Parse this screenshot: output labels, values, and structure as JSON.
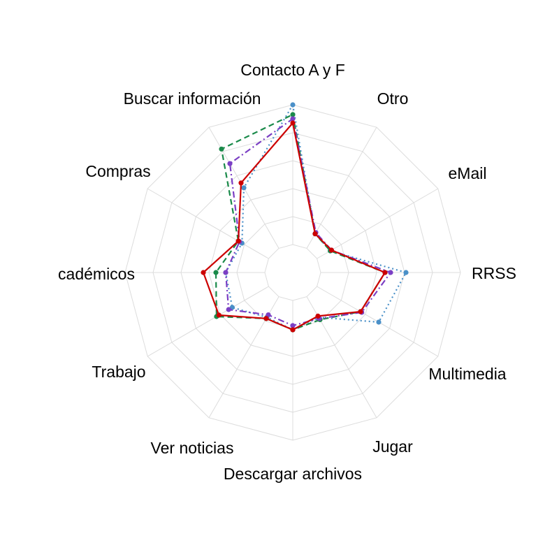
{
  "chart_data": {
    "type": "radar",
    "title": "",
    "grid": true,
    "legend": "none",
    "max_value": 100,
    "rings": 5,
    "categories": [
      "Contacto A y F",
      "Otro",
      "eMail",
      "RRSS",
      "Multimedia",
      "Jugar",
      "Descargar archivos",
      "Ver noticias",
      "Trabajo",
      "cadémicos",
      "Compras",
      "Buscar información"
    ],
    "series": [
      {
        "color": "#4a90c8",
        "line_style": "dotted",
        "values": [
          100,
          12,
          11,
          61,
          51,
          17,
          21,
          17,
          30,
          28,
          22,
          50
        ]
      },
      {
        "color": "#1a8a4a",
        "line_style": "dashed",
        "values": [
          93,
          12,
          11,
          46,
          36,
          19,
          21,
          18,
          43,
          35,
          25,
          82
        ]
      },
      {
        "color": "#7b3fc4",
        "line_style": "dashdot",
        "values": [
          90,
          13,
          12,
          50,
          37,
          18,
          18,
          15,
          33,
          28,
          24,
          70
        ]
      },
      {
        "color": "#cc0000",
        "line_style": "solid",
        "values": [
          87,
          12,
          12,
          46,
          36,
          16,
          21,
          18,
          41,
          44,
          25,
          54
        ]
      }
    ]
  }
}
